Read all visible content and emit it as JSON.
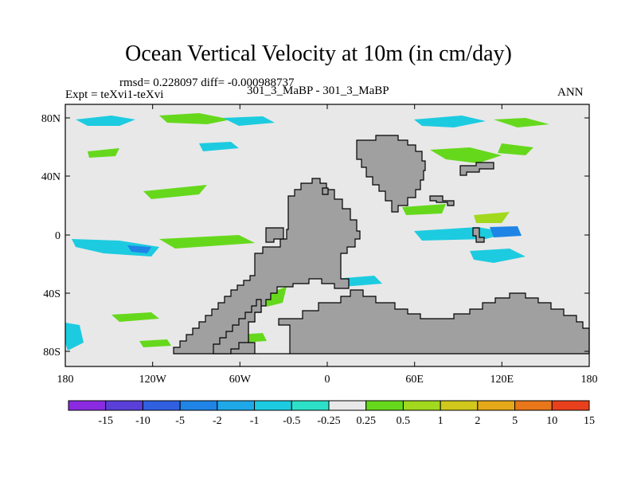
{
  "title": "Ocean Vertical Velocity at 10m (in cm/day)",
  "stats_text": "rmsd= 0.228097   diff= -0.000988737",
  "experiment_label": "Expt = teXvi1-teXvi",
  "case_label": "301_3_MaBP - 301_3_MaBP",
  "season": "ANN",
  "lat_ticks": [
    "80N",
    "40N",
    "0",
    "40S",
    "80S"
  ],
  "lon_ticks": [
    "180",
    "120W",
    "60W",
    "0",
    "60E",
    "120E",
    "180"
  ],
  "colorbar": {
    "labels": [
      "-15",
      "-10",
      "-5",
      "-2",
      "-1",
      "-0.5",
      "-0.25",
      "0.25",
      "0.5",
      "1",
      "2",
      "5",
      "10",
      "15"
    ],
    "colors": [
      "#8a2be2",
      "#5a3fd8",
      "#3060e0",
      "#1f84e6",
      "#1ea8e8",
      "#1dcbe0",
      "#2de0c8",
      "#e8e8e8",
      "#66d81c",
      "#a2d81e",
      "#d0c81c",
      "#e5a818",
      "#e97618",
      "#e8401c"
    ]
  },
  "colors": {
    "land": "#a0a0a0",
    "ocean_neutral": "#e8e8e8",
    "cyan": "#1dcbe0",
    "green": "#66d81c",
    "lime": "#a2d81e",
    "blue": "#1f84e6"
  }
}
